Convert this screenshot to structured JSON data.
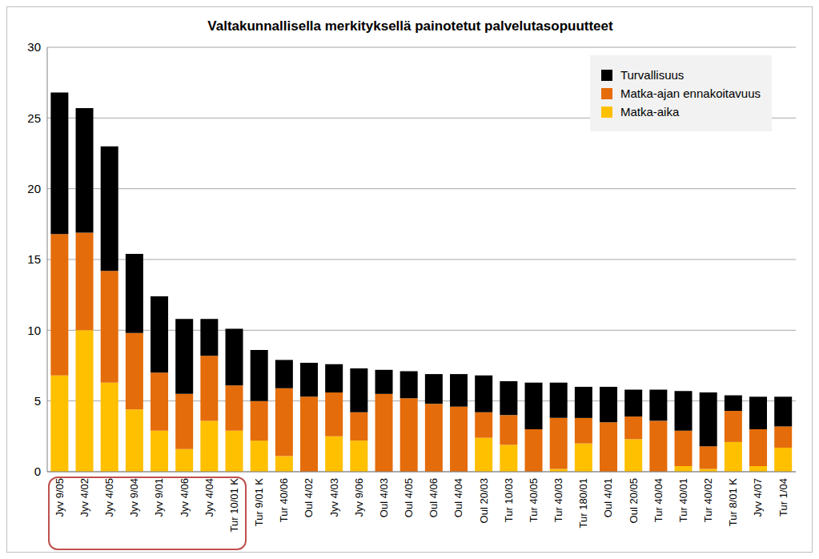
{
  "chart_data": {
    "type": "bar",
    "title": "Valtakunnallisella merkityksellä painotetut palvelutasopuutteet",
    "categories": [
      "Jyv 9/05",
      "Jyv 4/02",
      "Jyv 4/05",
      "Jyv 9/04",
      "Jyv 9/01",
      "Jyv 4/06",
      "Jyv 4/04",
      "Tur 10/01 K",
      "Tur 9/01 K",
      "Tur 40/06",
      "Oul 4/02",
      "Jyv 4/03",
      "Jyv 9/06",
      "Oul 4/03",
      "Oul 4/05",
      "Oul 4/06",
      "Oul 4/04",
      "Oul 20/03",
      "Tur 10/03",
      "Tur 40/05",
      "Tur 40/03",
      "Tur 180/01",
      "Oul 4/01",
      "Oul 20/05",
      "Tur 40/04",
      "Tur 40/01",
      "Tur 40/02",
      "Tur 8/01 K",
      "Jyv 4/07",
      "Tur 1/04"
    ],
    "series": [
      {
        "name": "Matka-aika",
        "color": "#ffc000",
        "values": [
          6.8,
          10.0,
          6.3,
          4.4,
          2.9,
          1.6,
          3.6,
          2.9,
          2.2,
          1.1,
          0,
          2.5,
          2.2,
          0,
          0,
          0,
          0,
          2.4,
          1.9,
          0,
          0.2,
          2.0,
          0,
          2.3,
          0,
          0.4,
          0.2,
          2.1,
          0.4,
          1.7
        ]
      },
      {
        "name": "Matka-ajan ennakoitavuus",
        "color": "#e46c0a",
        "values": [
          10.0,
          6.9,
          7.9,
          5.4,
          4.1,
          3.9,
          4.6,
          3.2,
          2.8,
          4.8,
          5.3,
          3.1,
          2.0,
          5.5,
          5.2,
          4.8,
          4.6,
          1.8,
          2.1,
          3.0,
          3.6,
          1.8,
          3.5,
          1.6,
          3.6,
          2.5,
          1.6,
          2.2,
          2.6,
          1.5
        ]
      },
      {
        "name": "Turvallisuus",
        "color": "#000000",
        "values": [
          10.0,
          8.8,
          8.8,
          5.6,
          5.4,
          5.3,
          2.6,
          4.0,
          3.6,
          2.0,
          2.4,
          2.0,
          3.1,
          1.7,
          1.9,
          2.1,
          2.3,
          2.6,
          2.4,
          3.3,
          2.5,
          2.2,
          2.5,
          1.9,
          2.2,
          2.8,
          3.8,
          1.1,
          2.3,
          2.1
        ]
      }
    ],
    "ylim": [
      0,
      30
    ],
    "yticks": [
      0,
      5,
      10,
      15,
      20,
      25,
      30
    ],
    "grid": true,
    "stacked": true,
    "legend": "top-right"
  }
}
